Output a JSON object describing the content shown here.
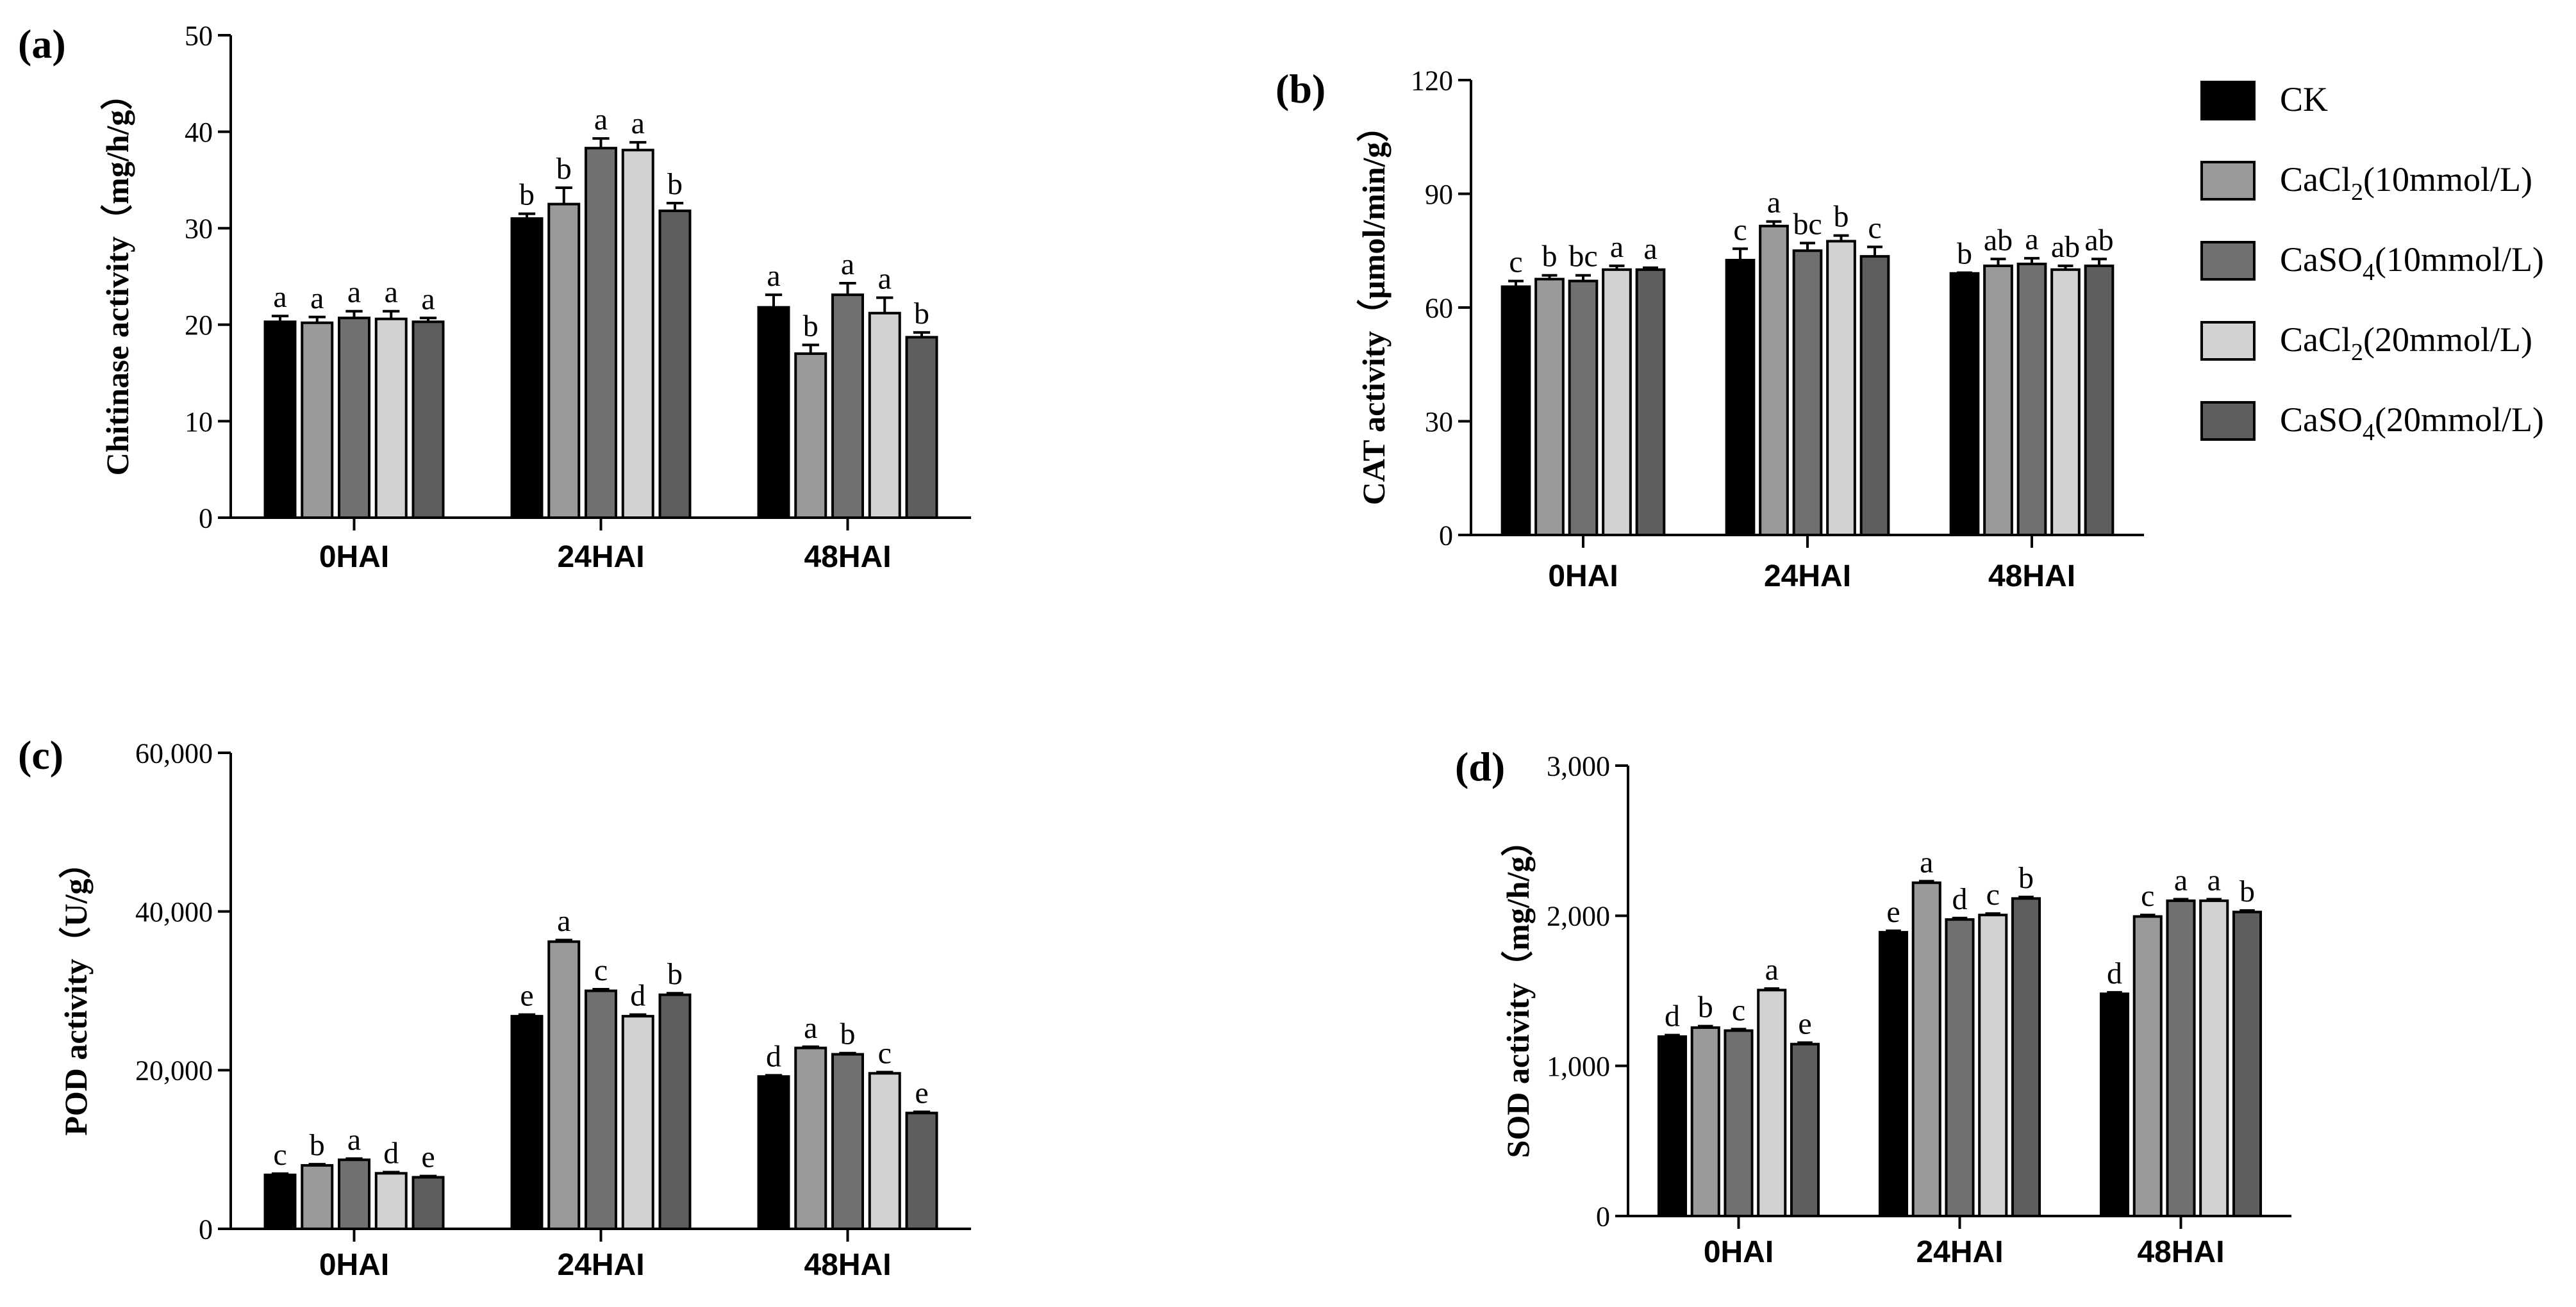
{
  "colors": {
    "CK": "#000000",
    "CaCl2_10": "#9a9a9a",
    "CaSO4_10": "#707070",
    "CaCl2_20": "#d2d2d2",
    "CaSO4_20": "#5e5e5e"
  },
  "legend": {
    "entries": [
      {
        "pre": "CK",
        "sub": "",
        "post": "",
        "color": "#000000"
      },
      {
        "pre": "CaCl",
        "sub": "2",
        "post": "(10mmol/L)",
        "color": "#9a9a9a"
      },
      {
        "pre": "CaSO",
        "sub": "4",
        "post": "(10mmol/L)",
        "color": "#707070"
      },
      {
        "pre": "CaCl",
        "sub": "2",
        "post": "(20mmol/L)",
        "color": "#d2d2d2"
      },
      {
        "pre": "CaSO",
        "sub": "4",
        "post": "(20mmol/L)",
        "color": "#5e5e5e"
      }
    ]
  },
  "chart_data": [
    {
      "type": "bar",
      "panel": "(a)",
      "ylabel": "Chitinase activity（mg/h/g）",
      "ylim": [
        0,
        50
      ],
      "yticks": [
        0,
        10,
        20,
        30,
        40,
        50
      ],
      "tick_labels": [
        "0",
        "10",
        "20",
        "30",
        "40",
        "50"
      ],
      "categories": [
        "0HAI",
        "24HAI",
        "48HAI"
      ],
      "series": [
        {
          "name": "CK",
          "values": [
            20.3,
            31.0,
            21.8
          ],
          "errors": [
            0.6,
            0.5,
            1.3
          ],
          "letters": [
            "a",
            "b",
            "a"
          ]
        },
        {
          "name": "CaCl2(10mmol/L)",
          "values": [
            20.2,
            32.5,
            17.0
          ],
          "errors": [
            0.6,
            1.7,
            0.9
          ],
          "letters": [
            "a",
            "b",
            "b"
          ]
        },
        {
          "name": "CaSO4(10mmol/L)",
          "values": [
            20.7,
            38.3,
            23.1
          ],
          "errors": [
            0.7,
            1.0,
            1.2
          ],
          "letters": [
            "a",
            "a",
            "a"
          ]
        },
        {
          "name": "CaCl2(20mmol/L)",
          "values": [
            20.6,
            38.1,
            21.2
          ],
          "errors": [
            0.8,
            0.8,
            1.6
          ],
          "letters": [
            "a",
            "a",
            "a"
          ]
        },
        {
          "name": "CaSO4(20mmol/L)",
          "values": [
            20.3,
            31.8,
            18.7
          ],
          "errors": [
            0.4,
            0.8,
            0.5
          ],
          "letters": [
            "a",
            "b",
            "b"
          ]
        }
      ]
    },
    {
      "type": "bar",
      "panel": "(b)",
      "ylabel": "CAT activity（μmol/min/g）",
      "ylim": [
        0,
        120
      ],
      "yticks": [
        0,
        30,
        60,
        90,
        120
      ],
      "tick_labels": [
        "0",
        "30",
        "60",
        "90",
        "120"
      ],
      "categories": [
        "0HAI",
        "24HAI",
        "48HAI"
      ],
      "series": [
        {
          "name": "CK",
          "values": [
            65.5,
            72.5,
            69.0
          ],
          "errors": [
            1.5,
            3.0,
            0.2
          ],
          "letters": [
            "c",
            "c",
            "b"
          ]
        },
        {
          "name": "CaCl2(10mmol/L)",
          "values": [
            67.5,
            81.5,
            71.0
          ],
          "errors": [
            1.0,
            1.2,
            1.8
          ],
          "letters": [
            "b",
            "a",
            "ab"
          ]
        },
        {
          "name": "CaSO4(10mmol/L)",
          "values": [
            67.0,
            75.0,
            71.5
          ],
          "errors": [
            1.5,
            2.0,
            1.5
          ],
          "letters": [
            "bc",
            "bc",
            "a"
          ]
        },
        {
          "name": "CaCl2(20mmol/L)",
          "values": [
            70.0,
            77.5,
            70.0
          ],
          "errors": [
            1.0,
            1.5,
            1.0
          ],
          "letters": [
            "a",
            "b",
            "ab"
          ]
        },
        {
          "name": "CaSO4(20mmol/L)",
          "values": [
            70.0,
            73.5,
            71.0
          ],
          "errors": [
            0.5,
            2.5,
            1.8
          ],
          "letters": [
            "a",
            "c",
            "ab"
          ]
        }
      ]
    },
    {
      "type": "bar",
      "panel": "(c)",
      "ylabel": "POD activity（U/g）",
      "ylim": [
        0,
        60000
      ],
      "yticks": [
        0,
        20000,
        40000,
        60000
      ],
      "tick_labels": [
        "0",
        "20,000",
        "40,000",
        "60,000"
      ],
      "categories": [
        "0HAI",
        "24HAI",
        "48HAI"
      ],
      "series": [
        {
          "name": "CK",
          "values": [
            6800,
            26800,
            19200
          ],
          "errors": [
            150,
            200,
            150
          ],
          "letters": [
            "c",
            "e",
            "d"
          ]
        },
        {
          "name": "CaCl2(10mmol/L)",
          "values": [
            8000,
            36200,
            22800
          ],
          "errors": [
            150,
            200,
            150
          ],
          "letters": [
            "b",
            "a",
            "a"
          ]
        },
        {
          "name": "CaSO4(10mmol/L)",
          "values": [
            8700,
            30000,
            22000
          ],
          "errors": [
            150,
            200,
            150
          ],
          "letters": [
            "a",
            "c",
            "b"
          ]
        },
        {
          "name": "CaCl2(20mmol/L)",
          "values": [
            7000,
            26800,
            19600
          ],
          "errors": [
            150,
            200,
            150
          ],
          "letters": [
            "d",
            "d",
            "c"
          ]
        },
        {
          "name": "CaSO4(20mmol/L)",
          "values": [
            6500,
            29500,
            14600
          ],
          "errors": [
            150,
            200,
            150
          ],
          "letters": [
            "e",
            "b",
            "e"
          ]
        }
      ]
    },
    {
      "type": "bar",
      "panel": "(d)",
      "ylabel": "SOD activity（mg/h/g）",
      "ylim": [
        0,
        3000
      ],
      "yticks": [
        0,
        1000,
        2000,
        3000
      ],
      "tick_labels": [
        "0",
        "1,000",
        "2,000",
        "3,000"
      ],
      "categories": [
        "0HAI",
        "24HAI",
        "48HAI"
      ],
      "series": [
        {
          "name": "CK",
          "values": [
            1195,
            1890,
            1480
          ],
          "errors": [
            10,
            10,
            10
          ],
          "letters": [
            "d",
            "e",
            "d"
          ]
        },
        {
          "name": "CaCl2(10mmol/L)",
          "values": [
            1255,
            2220,
            1995
          ],
          "errors": [
            10,
            10,
            10
          ],
          "letters": [
            "b",
            "a",
            "c"
          ]
        },
        {
          "name": "CaSO4(10mmol/L)",
          "values": [
            1235,
            1975,
            2100
          ],
          "errors": [
            10,
            10,
            10
          ],
          "letters": [
            "c",
            "d",
            "a"
          ]
        },
        {
          "name": "CaCl2(20mmol/L)",
          "values": [
            1505,
            2005,
            2100
          ],
          "errors": [
            10,
            10,
            10
          ],
          "letters": [
            "a",
            "c",
            "a"
          ]
        },
        {
          "name": "CaSO4(20mmol/L)",
          "values": [
            1145,
            2115,
            2025
          ],
          "errors": [
            10,
            10,
            10
          ],
          "letters": [
            "e",
            "b",
            "b"
          ]
        }
      ]
    }
  ]
}
